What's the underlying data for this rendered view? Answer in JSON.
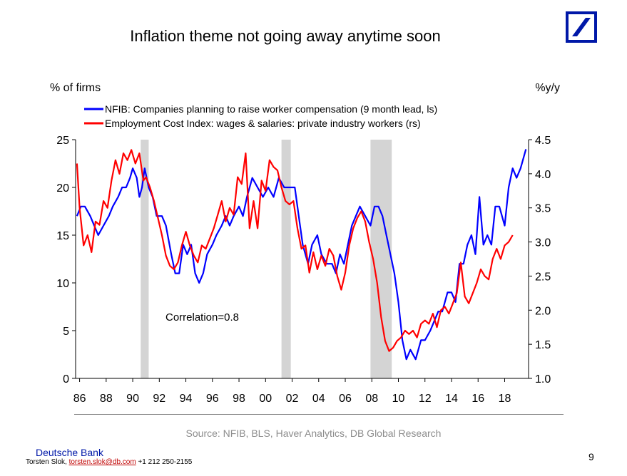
{
  "slide": {
    "title": "Inflation theme not going away anytime soon",
    "source": "Source: NFIB, BLS, Haver Analytics, DB Global Research",
    "brand": "Deutsche Bank",
    "author": "Torsten Slok,",
    "email": "torsten.slok@db.com",
    "phone": "+1 212 250-2155",
    "page_number": "9",
    "logo_icon": "deutsche-bank-slash-logo",
    "logo_color": "#0018A8"
  },
  "chart_data": {
    "type": "line",
    "left_axis_label": "% of firms",
    "right_axis_label": "%y/y",
    "annotation": "Correlation=0.8",
    "x_range": [
      1985.7,
      2019.8
    ],
    "x_ticks": [
      "86",
      "88",
      "90",
      "92",
      "94",
      "96",
      "98",
      "00",
      "02",
      "04",
      "06",
      "08",
      "10",
      "12",
      "14",
      "16",
      "18"
    ],
    "x_tick_years": [
      1986,
      1988,
      1990,
      1992,
      1994,
      1996,
      1998,
      2000,
      2002,
      2004,
      2006,
      2008,
      2010,
      2012,
      2014,
      2016,
      2018
    ],
    "ylim_left": [
      0,
      25
    ],
    "yticks_left": [
      "0",
      "5",
      "10",
      "15",
      "20",
      "25"
    ],
    "ylim_right": [
      1.0,
      4.5
    ],
    "yticks_right": [
      "1.0",
      "1.5",
      "2.0",
      "2.5",
      "3.0",
      "3.5",
      "4.0",
      "4.5"
    ],
    "recessions": [
      [
        1990.6,
        1991.2
      ],
      [
        2001.2,
        2001.9
      ],
      [
        2007.9,
        2009.5
      ]
    ],
    "series": [
      {
        "name": "NFIB: Companies planning to raise worker compensation (9 month lead, ls)",
        "color": "#0000FF",
        "axis": "left",
        "x": [
          1985.8,
          1986.1,
          1986.4,
          1986.8,
          1987.1,
          1987.4,
          1987.8,
          1988.2,
          1988.5,
          1988.9,
          1989.2,
          1989.5,
          1989.8,
          1990.0,
          1990.3,
          1990.5,
          1990.7,
          1990.9,
          1991.2,
          1991.5,
          1991.8,
          1992.2,
          1992.5,
          1992.9,
          1993.2,
          1993.5,
          1993.8,
          1994.1,
          1994.4,
          1994.7,
          1995.0,
          1995.3,
          1995.6,
          1996.0,
          1996.3,
          1996.7,
          1997.0,
          1997.3,
          1997.6,
          1998.0,
          1998.3,
          1998.6,
          1999.0,
          1999.4,
          1999.8,
          2000.2,
          2000.6,
          2001.0,
          2001.4,
          2001.9,
          2002.2,
          2002.5,
          2002.8,
          2003.2,
          2003.5,
          2003.9,
          2004.2,
          2004.6,
          2005.0,
          2005.3,
          2005.6,
          2005.9,
          2006.2,
          2006.5,
          2006.8,
          2007.1,
          2007.5,
          2007.9,
          2008.2,
          2008.5,
          2008.8,
          2009.1,
          2009.4,
          2009.7,
          2010.0,
          2010.3,
          2010.6,
          2010.9,
          2011.3,
          2011.7,
          2012.0,
          2012.4,
          2012.7,
          2013.0,
          2013.3,
          2013.7,
          2014.0,
          2014.3,
          2014.6,
          2014.9,
          2015.2,
          2015.5,
          2015.8,
          2016.1,
          2016.4,
          2016.7,
          2017.0,
          2017.3,
          2017.6,
          2018.0,
          2018.3,
          2018.6,
          2018.9,
          2019.2,
          2019.6
        ],
        "values": [
          17,
          18,
          18,
          17,
          16,
          15,
          16,
          17,
          18,
          19,
          20,
          20,
          21,
          22,
          21,
          19,
          20,
          22,
          20,
          19,
          17,
          17,
          16,
          13,
          11,
          11,
          14,
          13,
          14,
          11,
          10,
          11,
          13,
          14,
          15,
          16,
          17,
          16,
          17,
          18,
          17,
          19,
          21,
          20,
          19,
          20,
          19,
          21,
          20,
          20,
          20,
          17,
          14,
          12,
          14,
          15,
          13,
          12,
          12,
          11,
          13,
          12,
          14,
          16,
          17,
          18,
          17,
          16,
          18,
          18,
          17,
          15,
          13,
          11,
          8,
          4,
          2,
          3,
          2,
          4,
          4,
          5,
          6,
          7,
          7,
          9,
          9,
          8,
          12,
          12,
          14,
          15,
          13,
          19,
          14,
          15,
          14,
          18,
          18,
          16,
          20,
          22,
          21,
          22,
          24
        ]
      },
      {
        "name": "Employment Cost Index: wages & salaries: private industry workers (rs)",
        "color": "#FF0000",
        "axis": "right",
        "x": [
          1985.8,
          1986.0,
          1986.3,
          1986.6,
          1986.9,
          1987.2,
          1987.5,
          1987.8,
          1988.1,
          1988.4,
          1988.7,
          1989.0,
          1989.3,
          1989.6,
          1989.9,
          1990.2,
          1990.5,
          1990.8,
          1991.0,
          1991.3,
          1991.6,
          1991.9,
          1992.2,
          1992.5,
          1992.8,
          1993.1,
          1993.4,
          1993.7,
          1994.0,
          1994.3,
          1994.6,
          1994.9,
          1995.2,
          1995.5,
          1995.8,
          1996.1,
          1996.4,
          1996.7,
          1997.0,
          1997.3,
          1997.6,
          1997.9,
          1998.2,
          1998.5,
          1998.8,
          1999.1,
          1999.4,
          1999.7,
          2000.0,
          2000.3,
          2000.6,
          2000.9,
          2001.2,
          2001.5,
          2001.8,
          2002.1,
          2002.4,
          2002.7,
          2003.0,
          2003.3,
          2003.6,
          2003.9,
          2004.2,
          2004.5,
          2004.8,
          2005.1,
          2005.4,
          2005.7,
          2006.0,
          2006.3,
          2006.6,
          2006.9,
          2007.2,
          2007.5,
          2007.8,
          2008.1,
          2008.4,
          2008.7,
          2009.0,
          2009.3,
          2009.6,
          2009.9,
          2010.2,
          2010.5,
          2010.8,
          2011.1,
          2011.4,
          2011.7,
          2012.0,
          2012.3,
          2012.6,
          2012.9,
          2013.2,
          2013.5,
          2013.8,
          2014.1,
          2014.4,
          2014.7,
          2015.0,
          2015.3,
          2015.6,
          2015.9,
          2016.2,
          2016.5,
          2016.8,
          2017.1,
          2017.4,
          2017.7,
          2018.0,
          2018.3,
          2018.6
        ],
        "values": [
          4.15,
          3.5,
          2.95,
          3.1,
          2.85,
          3.3,
          3.25,
          3.6,
          3.5,
          3.9,
          4.2,
          4.0,
          4.3,
          4.2,
          4.35,
          4.15,
          4.3,
          3.9,
          3.95,
          3.8,
          3.6,
          3.35,
          3.1,
          2.8,
          2.65,
          2.6,
          2.7,
          2.95,
          3.15,
          2.95,
          2.8,
          2.7,
          2.95,
          2.9,
          3.05,
          3.2,
          3.4,
          3.6,
          3.3,
          3.5,
          3.4,
          3.95,
          3.85,
          4.3,
          3.2,
          3.6,
          3.2,
          3.9,
          3.75,
          4.2,
          4.1,
          4.05,
          3.8,
          3.6,
          3.55,
          3.6,
          3.2,
          2.9,
          2.95,
          2.55,
          2.85,
          2.6,
          2.8,
          2.65,
          2.9,
          2.8,
          2.5,
          2.3,
          2.55,
          2.95,
          3.2,
          3.35,
          3.45,
          3.3,
          3.0,
          2.75,
          2.4,
          1.9,
          1.55,
          1.4,
          1.45,
          1.55,
          1.6,
          1.7,
          1.65,
          1.7,
          1.6,
          1.8,
          1.85,
          1.8,
          1.95,
          1.75,
          2.0,
          2.05,
          1.95,
          2.1,
          2.25,
          2.7,
          2.2,
          2.1,
          2.25,
          2.4,
          2.6,
          2.5,
          2.45,
          2.75,
          2.9,
          2.75,
          2.95,
          3.0,
          3.1
        ]
      }
    ]
  }
}
